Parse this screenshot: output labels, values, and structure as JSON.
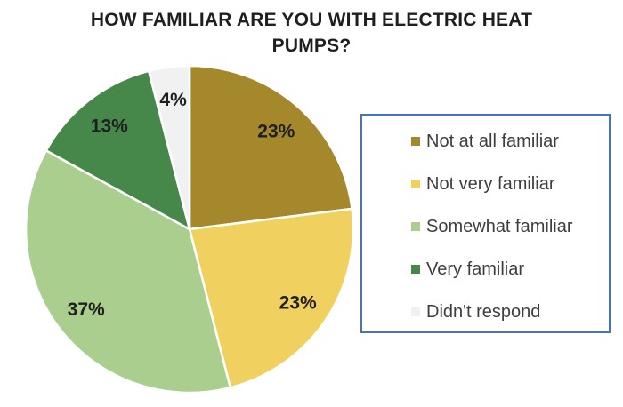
{
  "chart_data": {
    "type": "pie",
    "title": "HOW FAMILIAR ARE YOU WITH ELECTRIC HEAT PUMPS?",
    "categories": [
      "Not at all familiar",
      "Not very familiar",
      "Somewhat familiar",
      "Very familiar",
      "Didn't respond"
    ],
    "values": [
      23,
      23,
      37,
      13,
      4
    ],
    "labels": [
      "23%",
      "23%",
      "37%",
      "13%",
      "4%"
    ],
    "colors": [
      "#A5872C",
      "#F0D15F",
      "#A9CE8E",
      "#46884A",
      "#F1F1F1"
    ],
    "start_angle_deg": 0,
    "direction": "clockwise",
    "slice_border_color": "#FFFFFF",
    "label_color": "#1F1F1F",
    "legend": {
      "position": "right",
      "border_color": "#4472C4"
    }
  }
}
